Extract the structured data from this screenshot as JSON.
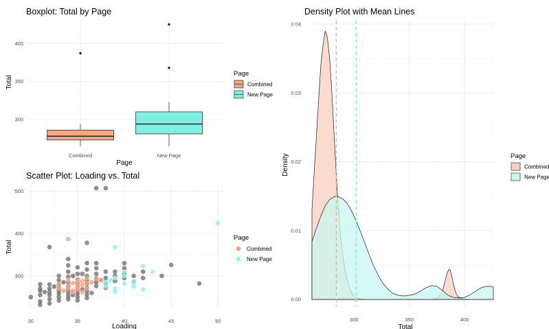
{
  "chart_data": [
    {
      "type": "boxplot",
      "title": "Boxplot: Total by Page",
      "xlabel": "Page",
      "ylabel": "Total",
      "ylim": [
        262,
        430
      ],
      "yticks": [
        300,
        350,
        400
      ],
      "categories": [
        "Combined",
        "New Page"
      ],
      "boxes": [
        {
          "category": "Combined",
          "whisker_low": 265,
          "q1": 273,
          "median": 278,
          "q3": 286,
          "whisker_high": 294,
          "outliers": [
            387
          ],
          "color": "#F4A582"
        },
        {
          "category": "New Page",
          "whisker_low": 265,
          "q1": 281,
          "median": 294,
          "q3": 310,
          "whisker_high": 323,
          "outliers": [
            368,
            425
          ],
          "color": "#7FF0E4"
        }
      ],
      "legend": {
        "title": "Page",
        "entries": [
          "Combined",
          "New Page"
        ],
        "position": "right"
      },
      "grid": true
    },
    {
      "type": "scatter",
      "title": "Scatter Plot: Loading vs. Total",
      "xlabel": "Loading",
      "ylabel": "Total",
      "xlim": [
        29.5,
        50.5
      ],
      "ylim": [
        225,
        515
      ],
      "xticks": [
        30,
        35,
        40,
        45,
        50
      ],
      "yticks": [
        300,
        400,
        500
      ],
      "legend": {
        "title": "Page",
        "entries": [
          "Combined",
          "New Page"
        ],
        "position": "right"
      },
      "grid": true,
      "series": [
        {
          "name": "gray",
          "color": "#6e6e6e",
          "points": [
            [
              30,
              250
            ],
            [
              31,
              232
            ],
            [
              31,
              240
            ],
            [
              31,
              255
            ],
            [
              31,
              265
            ],
            [
              31,
              270
            ],
            [
              31,
              280
            ],
            [
              32,
              368
            ],
            [
              32,
              280
            ],
            [
              32,
              270
            ],
            [
              32,
              262
            ],
            [
              32,
              255
            ],
            [
              32,
              245
            ],
            [
              32,
              235
            ],
            [
              33,
              300
            ],
            [
              33,
              290
            ],
            [
              33,
              280
            ],
            [
              33,
              272
            ],
            [
              33,
              265
            ],
            [
              33,
              258
            ],
            [
              33,
              250
            ],
            [
              33,
              242
            ],
            [
              34,
              340
            ],
            [
              34,
              325
            ],
            [
              34,
              310
            ],
            [
              34,
              298
            ],
            [
              34,
              285
            ],
            [
              34,
              275
            ],
            [
              34,
              268
            ],
            [
              34,
              260
            ],
            [
              34,
              252
            ],
            [
              34,
              245
            ],
            [
              35,
              320
            ],
            [
              35,
              305
            ],
            [
              35,
              292
            ],
            [
              35,
              283
            ],
            [
              35,
              275
            ],
            [
              35,
              266
            ],
            [
              35,
              258
            ],
            [
              35,
              250
            ],
            [
              35,
              242
            ],
            [
              36,
              378
            ],
            [
              36,
              330
            ],
            [
              36,
              315
            ],
            [
              36,
              300
            ],
            [
              36,
              290
            ],
            [
              36,
              282
            ],
            [
              36,
              272
            ],
            [
              36,
              264
            ],
            [
              36,
              256
            ],
            [
              36,
              248
            ],
            [
              37,
              507
            ],
            [
              37,
              330
            ],
            [
              37,
              318
            ],
            [
              37,
              305
            ],
            [
              37,
              294
            ],
            [
              37,
              285
            ],
            [
              37,
              276
            ],
            [
              38,
              507
            ],
            [
              38,
              310
            ],
            [
              38,
              295
            ],
            [
              38,
              283
            ],
            [
              38,
              272
            ],
            [
              39,
              310
            ],
            [
              39,
              300
            ],
            [
              39,
              288
            ],
            [
              40,
              330
            ],
            [
              40,
              318
            ],
            [
              40,
              305
            ],
            [
              40,
              295
            ],
            [
              41,
              300
            ],
            [
              41,
              286
            ],
            [
              42,
              310
            ],
            [
              42,
              295
            ],
            [
              44,
              300
            ],
            [
              45,
              326
            ],
            [
              48,
              282
            ],
            [
              35.5,
              305
            ],
            [
              34.5,
              300
            ],
            [
              33.5,
              285
            ],
            [
              36.5,
              260
            ],
            [
              37.5,
              290
            ],
            [
              35.5,
              268
            ],
            [
              34.5,
              255
            ],
            [
              32.5,
              275
            ],
            [
              31.5,
              262
            ]
          ]
        },
        {
          "name": "Combined",
          "color": "#F4A582",
          "points": [
            [
              33,
              270
            ],
            [
              33,
              280
            ],
            [
              33.5,
              265
            ],
            [
              34,
              387
            ],
            [
              34,
              290
            ],
            [
              34,
              278
            ],
            [
              34,
              270
            ],
            [
              34.5,
              283
            ],
            [
              34.5,
              265
            ],
            [
              35,
              292
            ],
            [
              35,
              285
            ],
            [
              35,
              276
            ],
            [
              35,
              268
            ],
            [
              35.5,
              288
            ],
            [
              35.5,
              278
            ],
            [
              36,
              295
            ],
            [
              36,
              283
            ],
            [
              36,
              270
            ],
            [
              36.5,
              285
            ],
            [
              37,
              293
            ],
            [
              37.5,
              290
            ],
            [
              35.5,
              262
            ],
            [
              34.5,
              262
            ]
          ]
        },
        {
          "name": "New Page",
          "color": "#8FF3EA",
          "points": [
            [
              38,
              275
            ],
            [
              38,
              285
            ],
            [
              38.5,
              290
            ],
            [
              39,
              368
            ],
            [
              39,
              295
            ],
            [
              39,
              270
            ],
            [
              39,
              262
            ],
            [
              40,
              310
            ],
            [
              40,
              300
            ],
            [
              40,
              282
            ],
            [
              41,
              285
            ],
            [
              41,
              275
            ],
            [
              42,
              323
            ],
            [
              42,
              268
            ],
            [
              43,
              310
            ],
            [
              50,
              425
            ]
          ]
        }
      ]
    },
    {
      "type": "area",
      "title": "Density Plot with Mean Lines",
      "xlabel": "Total",
      "ylabel": "Density",
      "xlim": [
        262,
        426
      ],
      "ylim": [
        -0.001,
        0.0405
      ],
      "xticks": [
        300,
        350,
        400
      ],
      "yticks": [
        0.0,
        0.01,
        0.02,
        0.03,
        0.04
      ],
      "ytick_labels": [
        "0.00",
        "0.01",
        "0.02",
        "0.03",
        "0.04"
      ],
      "legend": {
        "title": "Page",
        "entries": [
          "Combined",
          "New Page"
        ],
        "position": "right"
      },
      "grid": true,
      "series": [
        {
          "name": "Combined",
          "color": "#F9CFBD",
          "mean": 284,
          "x": [
            262,
            265,
            268,
            270,
            272,
            274,
            276,
            278,
            280,
            282,
            284,
            286,
            288,
            290,
            292,
            294,
            296,
            298,
            300,
            305,
            310,
            315,
            320,
            330,
            340,
            350,
            360,
            370,
            376,
            380,
            382,
            384,
            386,
            387,
            388,
            390,
            392,
            394,
            398,
            405,
            426
          ],
          "y": [
            0.013,
            0.021,
            0.029,
            0.034,
            0.037,
            0.039,
            0.038,
            0.035,
            0.03,
            0.024,
            0.018,
            0.013,
            0.009,
            0.0062,
            0.0042,
            0.0028,
            0.0017,
            0.0009,
            0.0004,
            0.0001,
            0.0,
            0.0,
            0.0,
            0.0,
            0.0,
            0.0,
            0.0,
            0.0,
            0.0002,
            0.0012,
            0.0025,
            0.0038,
            0.0044,
            0.0043,
            0.0037,
            0.0022,
            0.001,
            0.0004,
            0.0001,
            0.0,
            0.0
          ]
        },
        {
          "name": "New Page",
          "color": "#C8F7F2",
          "mean": 302,
          "x": [
            262,
            266,
            270,
            274,
            278,
            282,
            286,
            290,
            294,
            298,
            302,
            306,
            310,
            314,
            318,
            322,
            326,
            330,
            335,
            340,
            345,
            350,
            355,
            360,
            365,
            370,
            375,
            380,
            385,
            390,
            395,
            400,
            405,
            410,
            415,
            420,
            423,
            426
          ],
          "y": [
            0.0084,
            0.0103,
            0.0121,
            0.0136,
            0.0145,
            0.0149,
            0.0149,
            0.0146,
            0.0139,
            0.0128,
            0.0114,
            0.0098,
            0.0081,
            0.0064,
            0.0048,
            0.0035,
            0.0024,
            0.0016,
            0.0009,
            0.0006,
            0.0005,
            0.0006,
            0.0008,
            0.0012,
            0.0017,
            0.002,
            0.0019,
            0.0013,
            0.0006,
            0.0003,
            0.0002,
            0.0003,
            0.0007,
            0.0012,
            0.0017,
            0.0019,
            0.0019,
            0.0018
          ]
        }
      ]
    }
  ]
}
